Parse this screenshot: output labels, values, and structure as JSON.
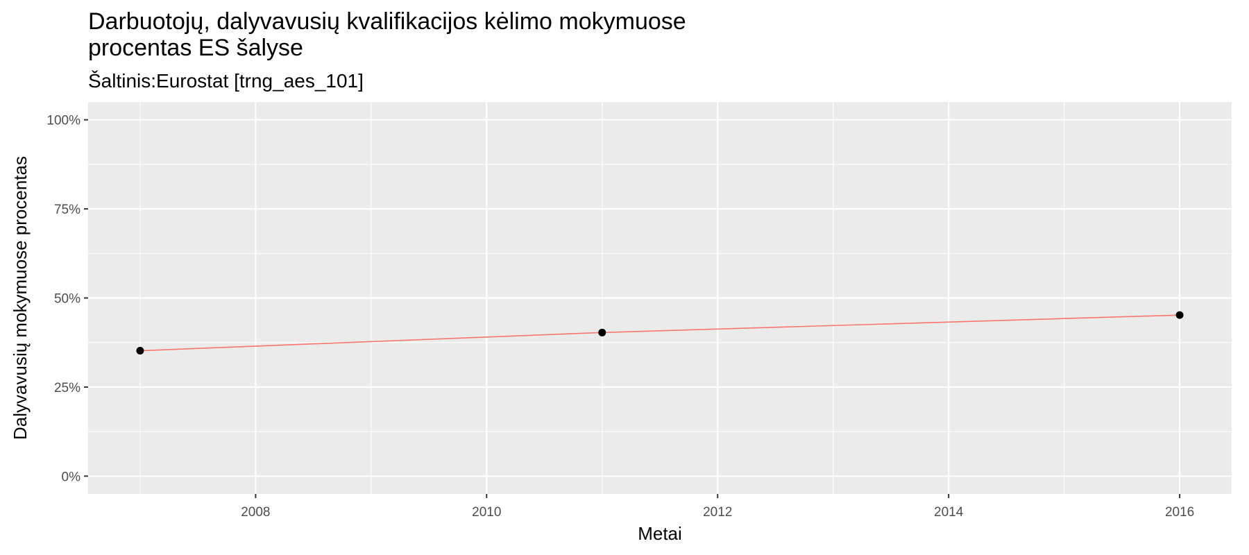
{
  "chart_data": {
    "type": "line",
    "title": "Darbuotojų, dalyvavusių kvalifikacijos kėlimo mokymuose\nprocentas ES šalyse",
    "subtitle": "Šaltinis:Eurostat [trng_aes_101]",
    "xlabel": "Metai",
    "ylabel": "Dalyvavusių mokymuose procentas",
    "x": [
      2007,
      2011,
      2016
    ],
    "series": [
      {
        "values": [
          35.2,
          40.3,
          45.2
        ]
      }
    ],
    "xlim": [
      2006.55,
      2016.45
    ],
    "ylim": [
      -5,
      105
    ],
    "x_ticks": [
      2008,
      2010,
      2012,
      2014,
      2016
    ],
    "x_tick_labels": [
      "2008",
      "2010",
      "2012",
      "2014",
      "2016"
    ],
    "y_ticks": [
      0,
      25,
      50,
      75,
      100
    ],
    "y_tick_labels": [
      "0%",
      "25%",
      "50%",
      "75%",
      "100%"
    ],
    "grid": true,
    "colors": {
      "line": "#F8766D",
      "point": "#000000",
      "panel": "#EBEBEB",
      "grid": "#FFFFFF"
    }
  }
}
